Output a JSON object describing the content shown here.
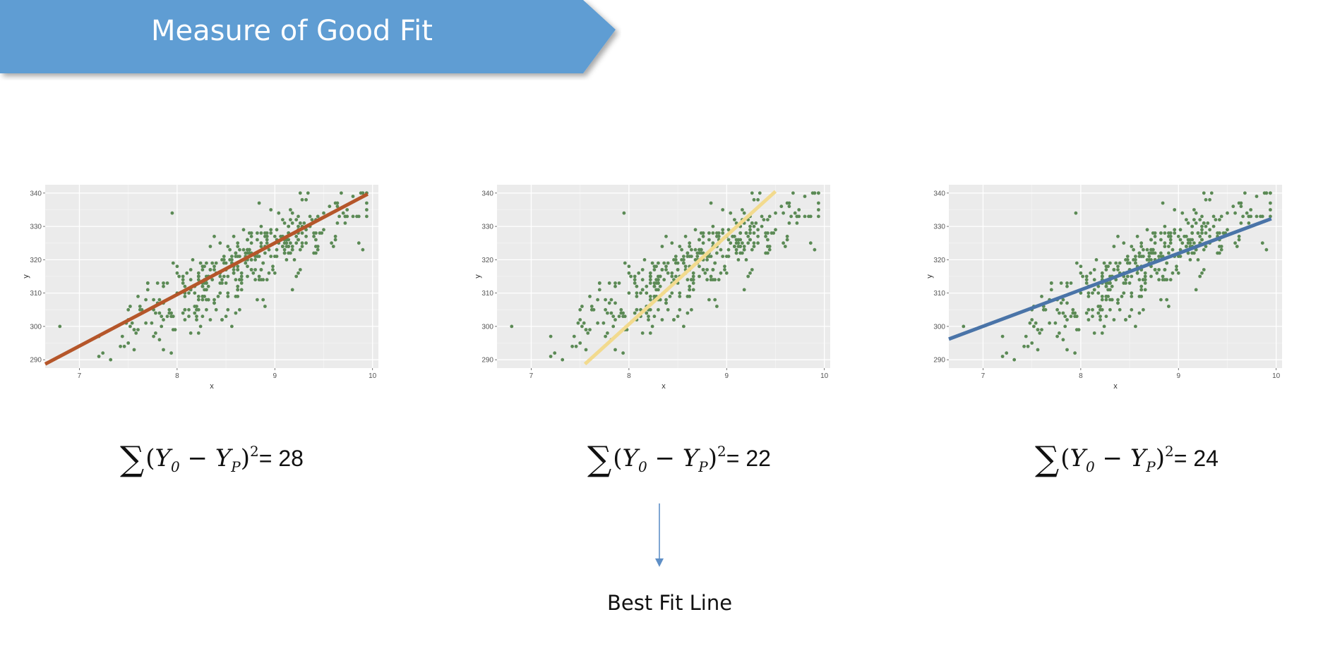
{
  "header": {
    "title": "Measure of Good Fit",
    "color": "#5f9dd3"
  },
  "formulas": [
    {
      "result": "= 28"
    },
    {
      "result": "= 22"
    },
    {
      "result": "= 24"
    }
  ],
  "formula_text": {
    "Y": "Y",
    "sub0": "0",
    "subP": "P",
    "minus": "−",
    "sup": "2",
    "sum": "∑",
    "open": "(",
    "close": ")"
  },
  "best_fit_label": "Best Fit Line",
  "chart_data": [
    {
      "type": "scatter",
      "xlabel": "x",
      "ylabel": "y",
      "xlim": [
        6.65,
        10.06
      ],
      "ylim": [
        287.5,
        342.5
      ],
      "xticks": [
        7,
        8,
        9,
        10
      ],
      "yticks": [
        290,
        300,
        310,
        320,
        330,
        340
      ],
      "grid": true,
      "point_color": "#5b8a55",
      "fit_line": {
        "x": [
          6.65,
          9.95
        ],
        "y": [
          288.7,
          339.7
        ],
        "color": "#b5562a"
      }
    },
    {
      "type": "scatter",
      "xlabel": "x",
      "ylabel": "y",
      "xlim": [
        6.65,
        10.06
      ],
      "ylim": [
        287.5,
        342.5
      ],
      "xticks": [
        7,
        8,
        9,
        10
      ],
      "yticks": [
        290,
        300,
        310,
        320,
        330,
        340
      ],
      "grid": true,
      "point_color": "#5b8a55",
      "fit_line": {
        "x": [
          7.55,
          9.5
        ],
        "y": [
          288.7,
          340.5
        ],
        "color": "#f2da8e"
      }
    },
    {
      "type": "scatter",
      "xlabel": "x",
      "ylabel": "y",
      "xlim": [
        6.65,
        10.06
      ],
      "ylim": [
        287.5,
        342.5
      ],
      "xticks": [
        7,
        8,
        9,
        10
      ],
      "yticks": [
        290,
        300,
        310,
        320,
        330,
        340
      ],
      "grid": true,
      "point_color": "#5b8a55",
      "fit_line": {
        "x": [
          6.65,
          9.95
        ],
        "y": [
          296.2,
          332.3
        ],
        "color": "#4a74a8"
      }
    }
  ]
}
